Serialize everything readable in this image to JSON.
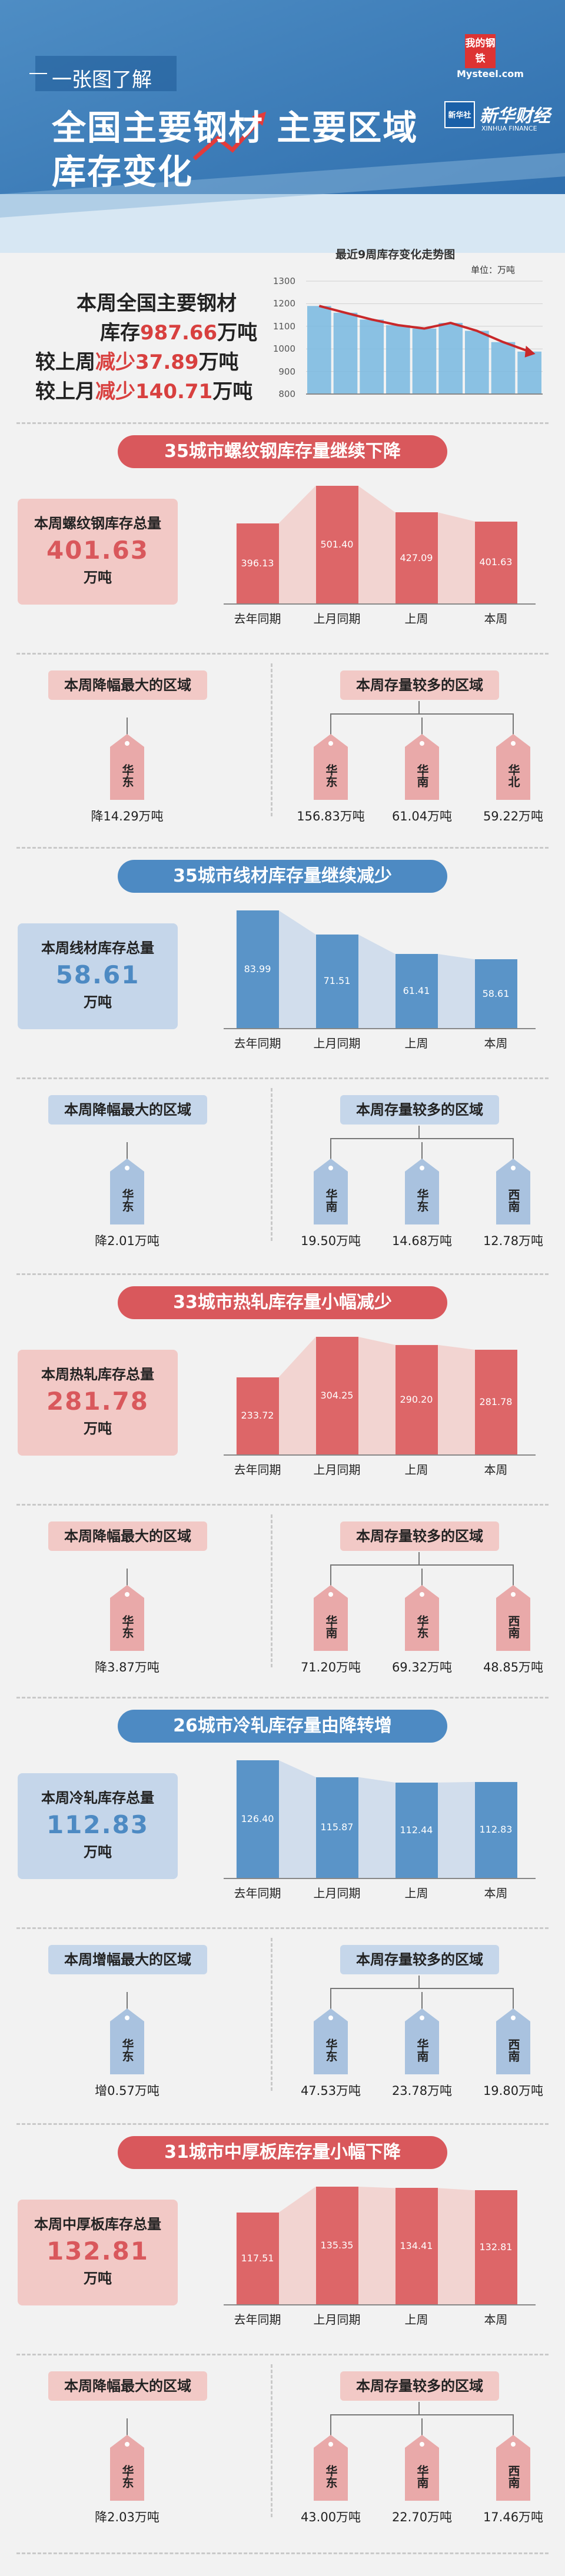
{
  "header": {
    "subtitle": "一张图了解",
    "title_line1": "全国主要钢材  主要区域",
    "title_line2": "库存变化",
    "logo_mysteel_top": "我的钢铁",
    "logo_mysteel_url": "Mysteel.com",
    "logo_xinhua": "新华财经",
    "logo_xinhua_en": "XINHUA FINANCE",
    "logo_xinhua_badge": "新华社"
  },
  "summary": {
    "line1": "本周全国主要钢材",
    "line2_prefix": "库存",
    "line2_value": "987.66",
    "line2_suffix": "万吨",
    "line3_prefix": "较上周",
    "line3_word": "减少",
    "line3_value": "37.89",
    "line3_suffix": "万吨",
    "line4_prefix": "较上月",
    "line4_word": "减少",
    "line4_value": "140.71",
    "line4_suffix": "万吨"
  },
  "trend_chart": {
    "title": "最近9周库存变化走势图",
    "unit": "单位：万吨",
    "ticks": [
      "1300",
      "1200",
      "1100",
      "1000",
      "900",
      "800"
    ]
  },
  "chart_data": [
    {
      "type": "area",
      "title": "最近9周库存变化走势图",
      "ylabel": "单位：万吨",
      "ylim": [
        800,
        1300
      ],
      "values": [
        1190,
        1160,
        1130,
        1105,
        1090,
        1115,
        1080,
        1030,
        988
      ]
    },
    {
      "type": "bar",
      "title": "35城市螺纹钢库存量继续下降",
      "categories": [
        "去年同期",
        "上月同期",
        "上周",
        "本周"
      ],
      "values": [
        396.13,
        501.4,
        427.09,
        401.63
      ],
      "value_labels": [
        "396.13",
        "501.40",
        "427.09",
        "401.63"
      ]
    },
    {
      "type": "bar",
      "title": "35城市线材库存量继续减少",
      "categories": [
        "去年同期",
        "上月同期",
        "上周",
        "本周"
      ],
      "values": [
        83.99,
        71.51,
        61.41,
        58.61
      ],
      "value_labels": [
        "83.99",
        "71.51",
        "61.41",
        "58.61"
      ]
    },
    {
      "type": "bar",
      "title": "33城市热轧库存量小幅减少",
      "categories": [
        "去年同期",
        "上月同期",
        "上周",
        "本周"
      ],
      "values": [
        233.72,
        304.25,
        290.2,
        281.78
      ],
      "value_labels": [
        "233.72",
        "304.25",
        "290.20",
        "281.78"
      ]
    },
    {
      "type": "bar",
      "title": "26城市冷轧库存量由降转增",
      "categories": [
        "去年同期",
        "上月同期",
        "上周",
        "本周"
      ],
      "values": [
        126.4,
        115.87,
        112.44,
        112.83
      ],
      "value_labels": [
        "126.40",
        "115.87",
        "112.44",
        "112.83"
      ]
    },
    {
      "type": "bar",
      "title": "31城市中厚板库存量小幅下降",
      "categories": [
        "去年同期",
        "上月同期",
        "上周",
        "本周"
      ],
      "values": [
        117.51,
        135.35,
        134.41,
        132.81
      ],
      "value_labels": [
        "117.51",
        "135.35",
        "134.41",
        "132.81"
      ]
    }
  ],
  "sections": [
    {
      "banner": "35城市螺纹钢库存量继续下降",
      "theme": "red",
      "total_label": "本周螺纹钢库存总量",
      "total_value": "401.63",
      "total_unit": "万吨",
      "left_pill": "本周降幅最大的区域",
      "left_tag": {
        "region": "华东",
        "amount": "降14.29万吨"
      },
      "right_pill": "本周存量较多的区域",
      "right_tags": [
        {
          "region": "华东",
          "amount": "156.83万吨"
        },
        {
          "region": "华南",
          "amount": "61.04万吨"
        },
        {
          "region": "华北",
          "amount": "59.22万吨"
        }
      ]
    },
    {
      "banner": "35城市线材库存量继续减少",
      "theme": "blue",
      "total_label": "本周线材库存总量",
      "total_value": "58.61",
      "total_unit": "万吨",
      "left_pill": "本周降幅最大的区域",
      "left_tag": {
        "region": "华东",
        "amount": "降2.01万吨"
      },
      "right_pill": "本周存量较多的区域",
      "right_tags": [
        {
          "region": "华南",
          "amount": "19.50万吨"
        },
        {
          "region": "华东",
          "amount": "14.68万吨"
        },
        {
          "region": "西南",
          "amount": "12.78万吨"
        }
      ]
    },
    {
      "banner": "33城市热轧库存量小幅减少",
      "theme": "red",
      "total_label": "本周热轧库存总量",
      "total_value": "281.78",
      "total_unit": "万吨",
      "left_pill": "本周降幅最大的区域",
      "left_tag": {
        "region": "华东",
        "amount": "降3.87万吨"
      },
      "right_pill": "本周存量较多的区域",
      "right_tags": [
        {
          "region": "华南",
          "amount": "71.20万吨"
        },
        {
          "region": "华东",
          "amount": "69.32万吨"
        },
        {
          "region": "西南",
          "amount": "48.85万吨"
        }
      ]
    },
    {
      "banner": "26城市冷轧库存量由降转增",
      "theme": "blue",
      "total_label": "本周冷轧库存总量",
      "total_value": "112.83",
      "total_unit": "万吨",
      "left_pill": "本周增幅最大的区域",
      "left_tag": {
        "region": "华东",
        "amount": "增0.57万吨"
      },
      "right_pill": "本周存量较多的区域",
      "right_tags": [
        {
          "region": "华东",
          "amount": "47.53万吨"
        },
        {
          "region": "华南",
          "amount": "23.78万吨"
        },
        {
          "region": "西南",
          "amount": "19.80万吨"
        }
      ]
    },
    {
      "banner": "31城市中厚板库存量小幅下降",
      "theme": "red",
      "total_label": "本周中厚板库存总量",
      "total_value": "132.81",
      "total_unit": "万吨",
      "left_pill": "本周降幅最大的区域",
      "left_tag": {
        "region": "华东",
        "amount": "降2.03万吨"
      },
      "right_pill": "本周存量较多的区域",
      "right_tags": [
        {
          "region": "华东",
          "amount": "43.00万吨"
        },
        {
          "region": "华南",
          "amount": "22.70万吨"
        },
        {
          "region": "西南",
          "amount": "17.46万吨"
        }
      ]
    }
  ],
  "colors": {
    "red_dark": "#d9585c",
    "red_bar": "#dd6668",
    "red_light": "#f2c9c6",
    "red_tag": "#e9a9a9",
    "blue_dark": "#4d8ac3",
    "blue_bar": "#5a94c8",
    "blue_light": "#c5d6ea",
    "blue_tag": "#a9c2df"
  }
}
